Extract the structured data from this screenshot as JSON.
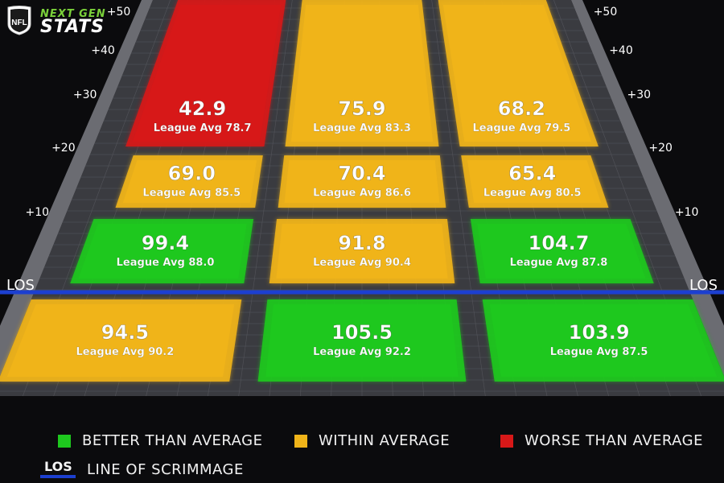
{
  "brand": {
    "league_logo_text": "NFL",
    "product_top": "NEXT GEN",
    "product_bottom": "STATS"
  },
  "yard_markers": [
    "+50",
    "+40",
    "+30",
    "+20",
    "+10"
  ],
  "los_label": "LOS",
  "zones": [
    {
      "id": "deep-left",
      "value": "42.9",
      "league_avg": "League Avg 78.7",
      "status": "worse"
    },
    {
      "id": "deep-middle",
      "value": "75.9",
      "league_avg": "League Avg 83.3",
      "status": "within"
    },
    {
      "id": "deep-right",
      "value": "68.2",
      "league_avg": "League Avg 79.5",
      "status": "within"
    },
    {
      "id": "intermediate-left",
      "value": "69.0",
      "league_avg": "League Avg 85.5",
      "status": "within"
    },
    {
      "id": "intermediate-middle",
      "value": "70.4",
      "league_avg": "League Avg 86.6",
      "status": "within"
    },
    {
      "id": "intermediate-right",
      "value": "65.4",
      "league_avg": "League Avg 80.5",
      "status": "within"
    },
    {
      "id": "short-left",
      "value": "99.4",
      "league_avg": "League Avg 88.0",
      "status": "better"
    },
    {
      "id": "short-middle",
      "value": "91.8",
      "league_avg": "League Avg 90.4",
      "status": "within"
    },
    {
      "id": "short-right",
      "value": "104.7",
      "league_avg": "League Avg 87.8",
      "status": "better"
    },
    {
      "id": "behind-left",
      "value": "94.5",
      "league_avg": "League Avg 90.2",
      "status": "within"
    },
    {
      "id": "behind-middle",
      "value": "105.5",
      "league_avg": "League Avg 92.2",
      "status": "better"
    },
    {
      "id": "behind-right",
      "value": "103.9",
      "league_avg": "League Avg 87.5",
      "status": "better"
    }
  ],
  "colors": {
    "better": "#1ec81e",
    "within": "#f0b419",
    "worse": "#d71818",
    "los_line": "#1c3fd0",
    "field": "#3a3b40",
    "grid": "#55565c"
  },
  "legend": {
    "better_label": "BETTER THAN AVERAGE",
    "within_label": "WITHIN AVERAGE",
    "worse_label": "WORSE THAN AVERAGE",
    "los_tag": "LOS",
    "los_label": "LINE OF SCRIMMAGE"
  }
}
